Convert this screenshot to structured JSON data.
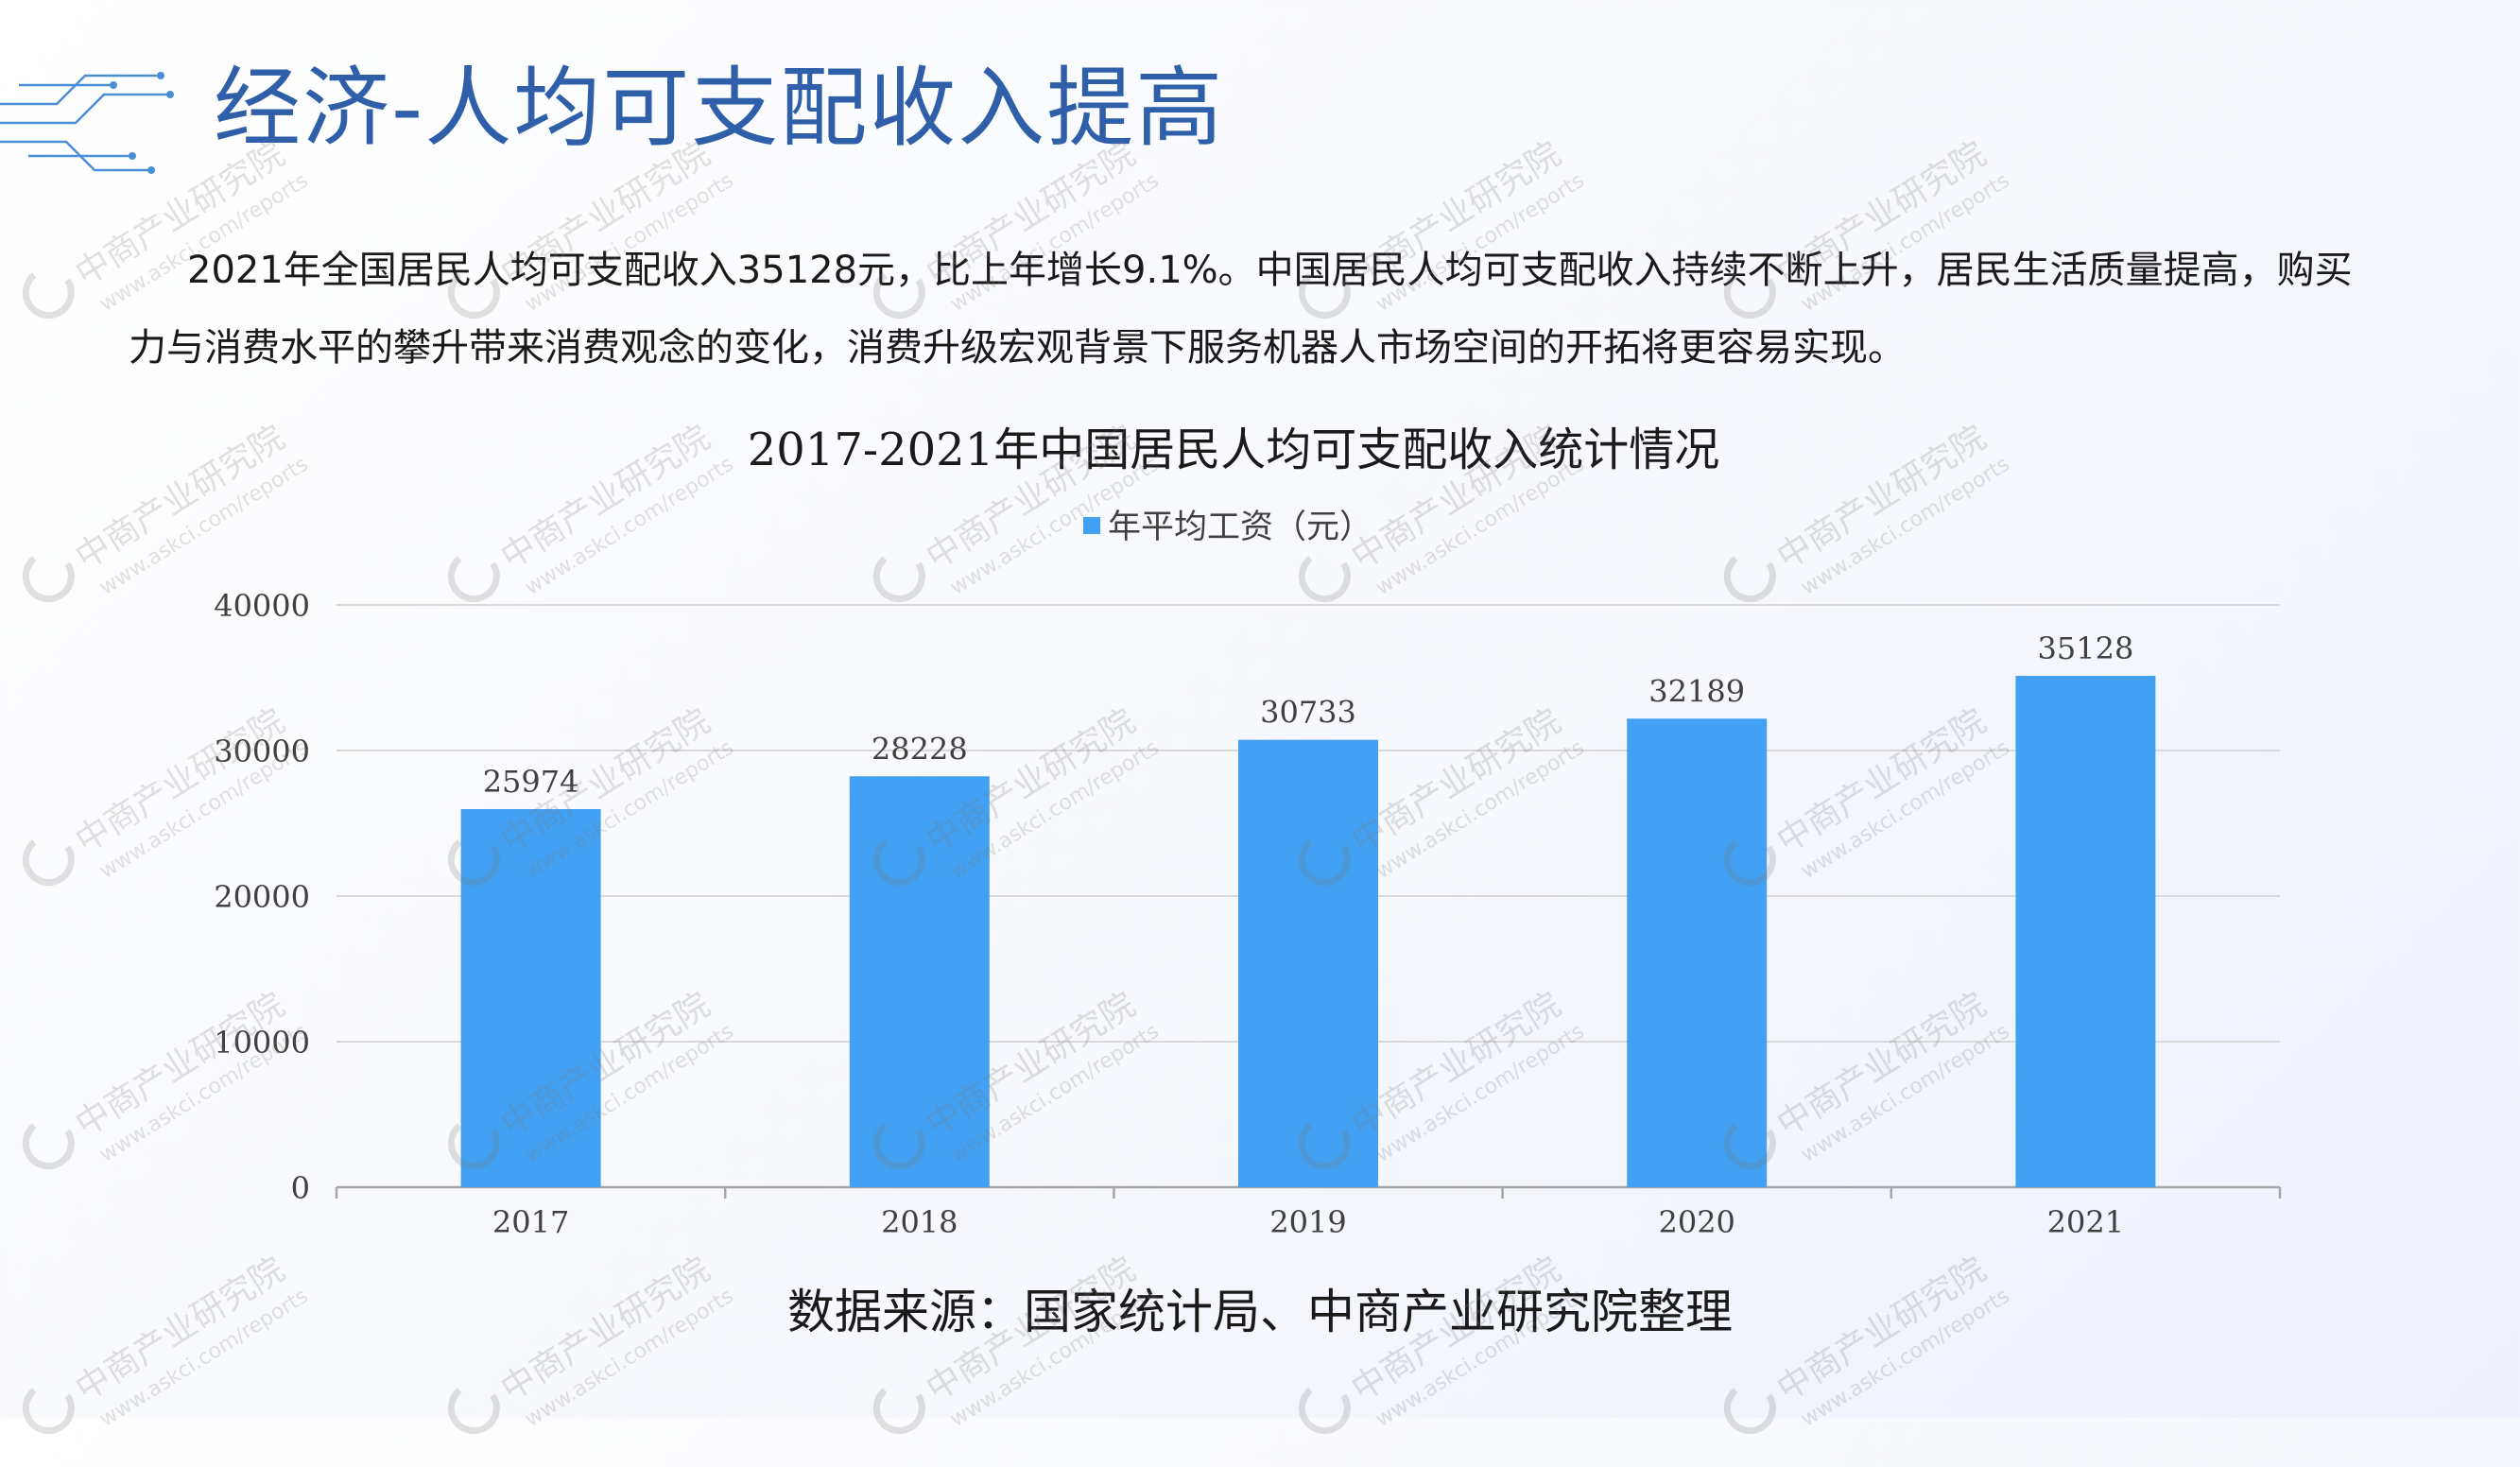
{
  "page": {
    "title": "经济-人均可支配收入提高",
    "intro": "2021年全国居民人均可支配收入35128元，比上年增长9.1%。中国居民人均可支配收入持续不断上升，居民生活质量提高，购买力与消费水平的攀升带来消费观念的变化，消费升级宏观背景下服务机器人市场空间的开拓将更容易实现。",
    "source": "数据来源：国家统计局、中商产业研究院整理",
    "watermark": {
      "name": "中商产业研究院",
      "url": "www.askci.com/reports"
    }
  },
  "colors": {
    "title": "#2f5fa8",
    "bar": "#42a1f2",
    "grid": "#d9d9d9",
    "axis": "#a6a6a6"
  },
  "chart_data": {
    "type": "bar",
    "title": "2017-2021年中国居民人均可支配收入统计情况",
    "xlabel": "",
    "ylabel": "",
    "categories": [
      "2017",
      "2018",
      "2019",
      "2020",
      "2021"
    ],
    "series": [
      {
        "name": "年平均工资（元）",
        "values": [
          25974,
          28228,
          30733,
          32189,
          35128
        ]
      }
    ],
    "ylim": [
      0,
      40000
    ],
    "yticks": [
      0,
      10000,
      20000,
      30000,
      40000
    ],
    "grid": true,
    "legend": "top-center",
    "data_labels": true
  }
}
